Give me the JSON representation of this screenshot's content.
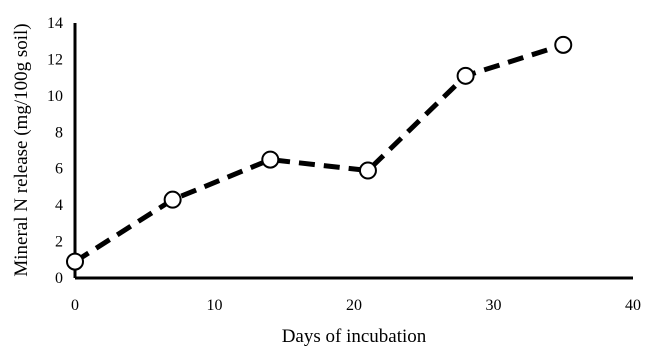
{
  "chart_data": {
    "type": "line",
    "xlabel": "Days of incubation",
    "ylabel": "Mineral N release (mg/100g soil)",
    "xlim": [
      0,
      40
    ],
    "ylim": [
      0,
      14
    ],
    "x_ticks": [
      0,
      10,
      20,
      30,
      40
    ],
    "y_ticks": [
      0,
      2,
      4,
      6,
      8,
      10,
      12,
      14
    ],
    "grid": false,
    "legend": "none",
    "series": [
      {
        "x": [
          0,
          7,
          14,
          21,
          28,
          35
        ],
        "y": [
          0.9,
          4.3,
          6.5,
          5.9,
          11.1,
          12.8
        ],
        "line_style": "dashed",
        "marker": "open-circle",
        "color": "#000000"
      }
    ]
  }
}
